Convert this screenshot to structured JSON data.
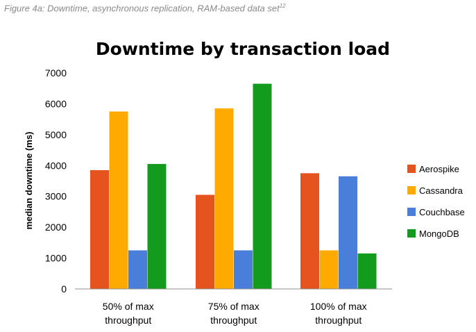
{
  "caption": {
    "text": "Figure 4a: Downtime, asynchronous replication, RAM-based data set",
    "footnote": "12"
  },
  "chart_data": {
    "type": "bar",
    "title": "Downtime by transaction load",
    "xlabel": "",
    "ylabel": "median downtime (ms)",
    "ylim": [
      0,
      7000
    ],
    "yticks": [
      0,
      1000,
      2000,
      3000,
      4000,
      5000,
      6000,
      7000
    ],
    "grid": false,
    "legend_position": "right",
    "categories": [
      [
        "50% of max",
        "throughput"
      ],
      [
        "75% of max",
        "throughput"
      ],
      [
        "100% of max",
        "throughput"
      ]
    ],
    "series": [
      {
        "name": "Aerospike",
        "color": "#E5541E",
        "values": [
          3850,
          3050,
          3750
        ]
      },
      {
        "name": "Cassandra",
        "color": "#FFAA00",
        "values": [
          5750,
          5850,
          1250
        ]
      },
      {
        "name": "Couchbase",
        "color": "#4A7EDB",
        "values": [
          1250,
          1250,
          3650
        ]
      },
      {
        "name": "MongoDB",
        "color": "#139B1D",
        "values": [
          4050,
          6650,
          1150
        ]
      }
    ]
  }
}
